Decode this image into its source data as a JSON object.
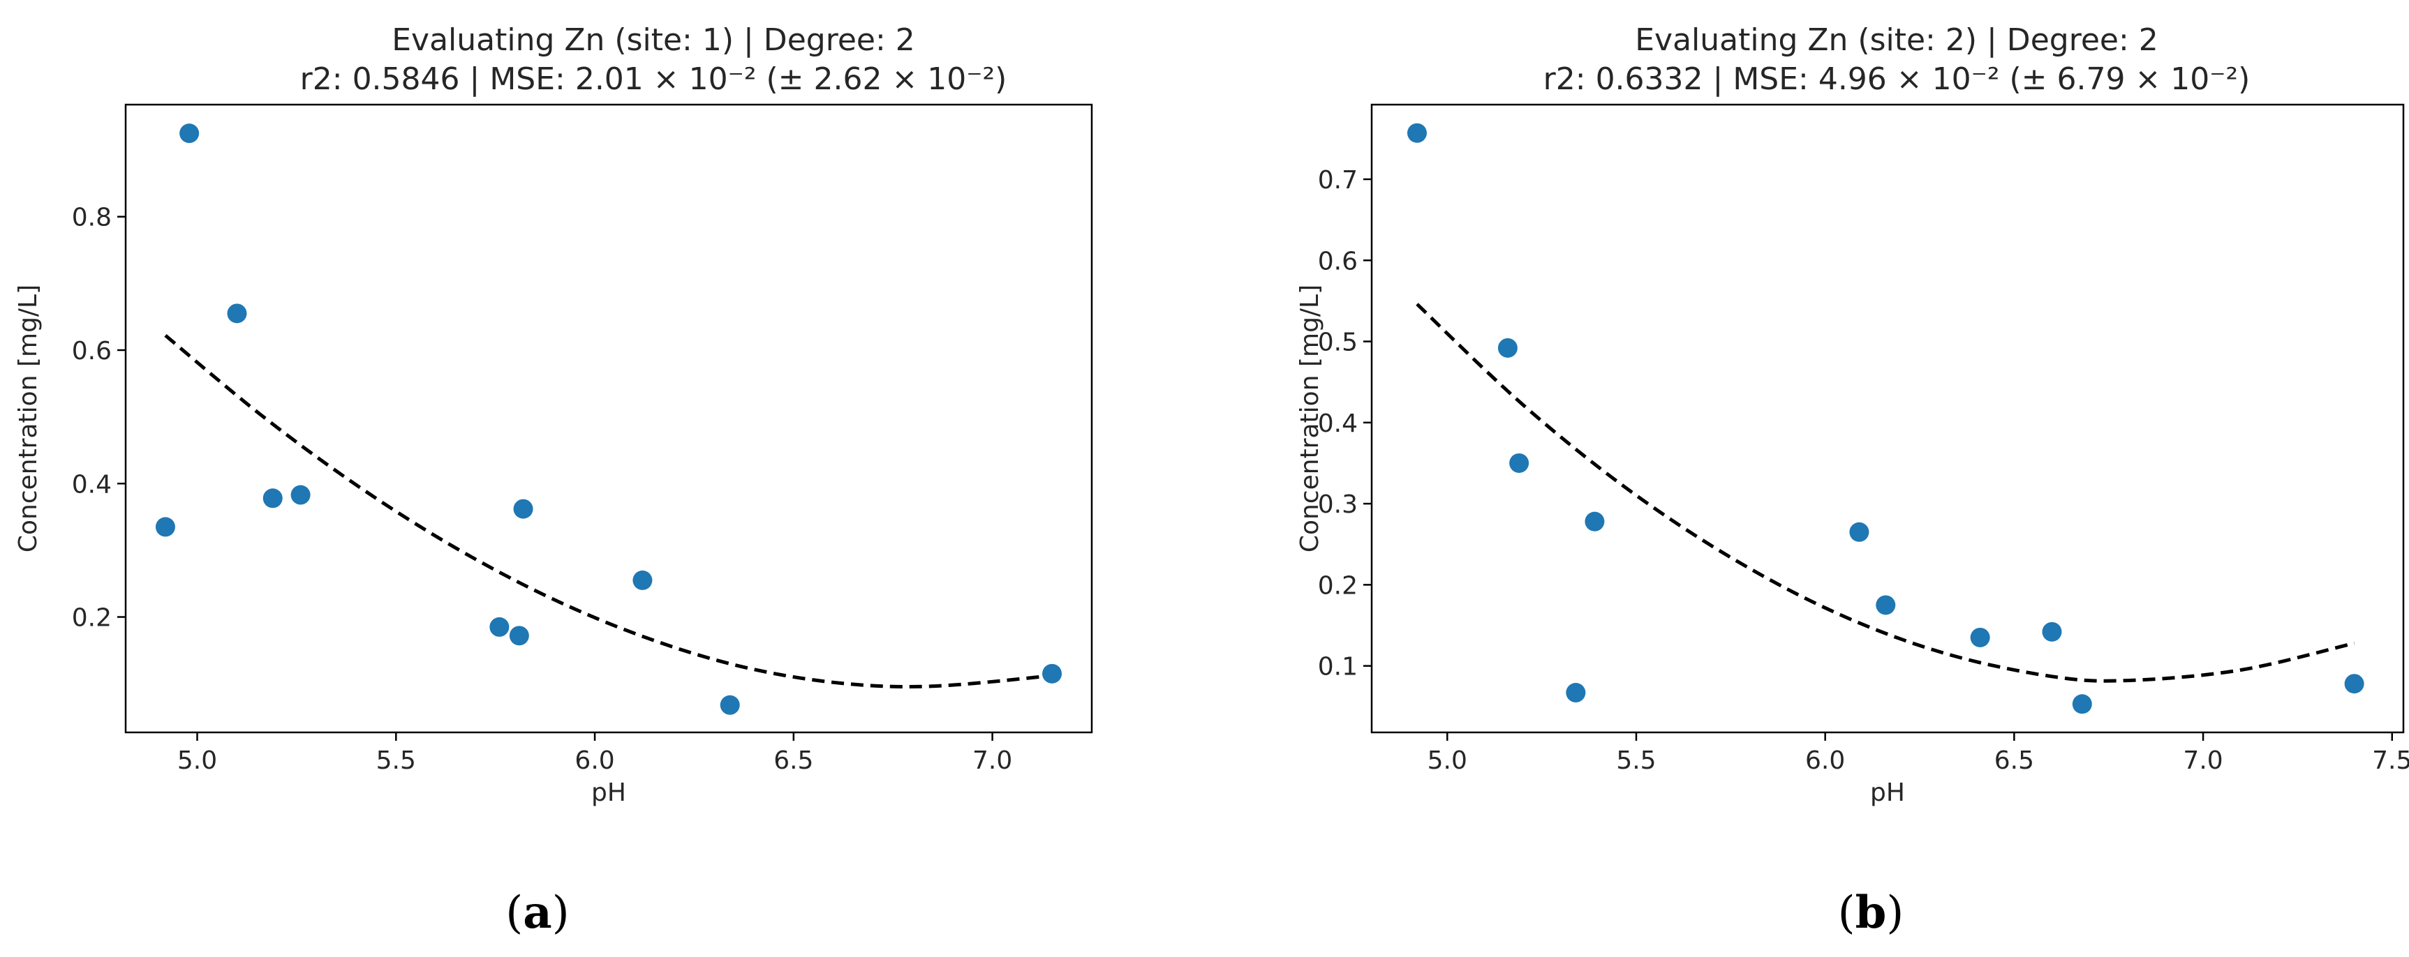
{
  "chart_data": [
    {
      "type": "scatter",
      "panel_label": "a",
      "title": "Evaluating Zn (site: 1) | Degree: 2",
      "subtitle": "r2: 0.5846 | MSE: 2.01 × 10⁻² (± 2.62 × 10⁻²)",
      "xlabel": "pH",
      "ylabel": "Concentration [mg/L]",
      "xlim": [
        4.82,
        7.25
      ],
      "ylim": [
        0.027,
        0.968
      ],
      "xticks": [
        5.0,
        5.5,
        6.0,
        6.5,
        7.0
      ],
      "xtick_labels": [
        "5.0",
        "5.5",
        "6.0",
        "6.5",
        "7.0"
      ],
      "yticks": [
        0.2,
        0.4,
        0.6,
        0.8
      ],
      "ytick_labels": [
        "0.2",
        "0.4",
        "0.6",
        "0.8"
      ],
      "grid": false,
      "point_color": "#1f77b4",
      "fit_color": "#000000",
      "points": {
        "x": [
          4.92,
          4.98,
          5.1,
          5.19,
          5.26,
          5.76,
          5.81,
          5.82,
          6.12,
          6.34,
          7.15
        ],
        "y": [
          0.335,
          0.925,
          0.655,
          0.378,
          0.383,
          0.185,
          0.172,
          0.362,
          0.255,
          0.068,
          0.115
        ]
      },
      "fit": {
        "x": [
          4.92,
          5.16,
          5.4,
          5.64,
          5.88,
          6.12,
          6.36,
          6.6,
          6.84,
          7.15
        ],
        "y": [
          0.622,
          0.503,
          0.398,
          0.307,
          0.231,
          0.171,
          0.127,
          0.102,
          0.096,
          0.112
        ]
      }
    },
    {
      "type": "scatter",
      "panel_label": "b",
      "title": "Evaluating Zn (site: 2) | Degree: 2",
      "subtitle": "r2: 0.6332 | MSE: 4.96 × 10⁻² (± 6.79 × 10⁻²)",
      "xlabel": "pH",
      "ylabel": "Concentration [mg/L]",
      "xlim": [
        4.8,
        7.53
      ],
      "ylim": [
        0.018,
        0.792
      ],
      "xticks": [
        5.0,
        5.5,
        6.0,
        6.5,
        7.0,
        7.5
      ],
      "xtick_labels": [
        "5.0",
        "5.5",
        "6.0",
        "6.5",
        "7.0",
        "7.5"
      ],
      "yticks": [
        0.1,
        0.2,
        0.3,
        0.4,
        0.5,
        0.6,
        0.7
      ],
      "ytick_labels": [
        "0.1",
        "0.2",
        "0.3",
        "0.4",
        "0.5",
        "0.6",
        "0.7"
      ],
      "grid": false,
      "point_color": "#1f77b4",
      "fit_color": "#000000",
      "points": {
        "x": [
          4.92,
          5.16,
          5.19,
          5.34,
          5.39,
          6.09,
          6.16,
          6.41,
          6.6,
          6.68,
          7.4
        ],
        "y": [
          0.757,
          0.492,
          0.35,
          0.067,
          0.278,
          0.265,
          0.175,
          0.135,
          0.142,
          0.053,
          0.078
        ]
      },
      "fit": {
        "x": [
          4.92,
          5.2,
          5.48,
          5.76,
          6.04,
          6.32,
          6.6,
          6.8,
          7.1,
          7.4
        ],
        "y": [
          0.546,
          0.422,
          0.317,
          0.231,
          0.163,
          0.115,
          0.087,
          0.082,
          0.095,
          0.128
        ]
      }
    }
  ]
}
